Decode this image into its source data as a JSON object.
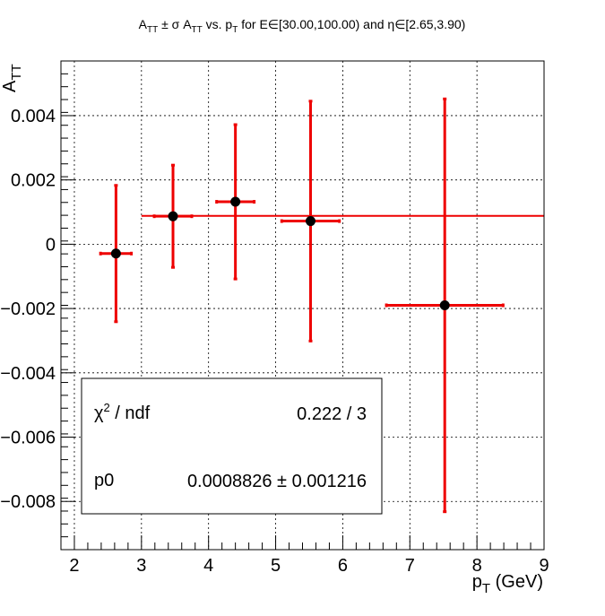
{
  "chart_data": {
    "type": "scatter",
    "title": {
      "a": "A",
      "a_sub": "TT",
      "pm_sigma": " ± σ A",
      "sigma_sub": "TT",
      "vs": " vs. p",
      "p_sub": "T",
      "rest": " for E∈[30.00,100.00) and η∈[2.65,3.90)"
    },
    "xlabel": {
      "main": "p",
      "sub": "T",
      "unit": " (GeV)"
    },
    "ylabel": {
      "main": "A",
      "sub": "TT"
    },
    "xlim": [
      1.8,
      9.0
    ],
    "ylim": [
      -0.0095,
      0.0057
    ],
    "x_ticks": [
      2,
      3,
      4,
      5,
      6,
      7,
      8,
      9
    ],
    "x_tick_labels": [
      "2",
      "3",
      "4",
      "5",
      "6",
      "7",
      "8",
      "9"
    ],
    "y_ticks": [
      0.004,
      0.002,
      0,
      -0.002,
      -0.004,
      -0.006,
      -0.008
    ],
    "y_tick_labels": [
      "0.004",
      "0.002",
      "0",
      "−0.002",
      "−0.004",
      "−0.006",
      "−0.008"
    ],
    "grid": true,
    "points": [
      {
        "x": 2.62,
        "y": -0.00029,
        "xerr": 0.23,
        "yerr": 0.00212
      },
      {
        "x": 3.47,
        "y": 0.00087,
        "xerr": 0.28,
        "yerr": 0.00159
      },
      {
        "x": 4.4,
        "y": 0.00132,
        "xerr": 0.28,
        "yerr": 0.0024
      },
      {
        "x": 5.52,
        "y": 0.00072,
        "xerr": 0.43,
        "yerr": 0.00373
      },
      {
        "x": 7.52,
        "y": -0.0019,
        "xerr": 0.87,
        "yerr": 0.00642
      }
    ],
    "fit": {
      "type": "constant",
      "value": 0.0008826,
      "x_range": [
        3.0,
        9.0
      ]
    },
    "colors": {
      "error_bars": "#ee0000",
      "fit_line": "#ee0000",
      "markers": "#000000"
    }
  },
  "stats_box": {
    "chi2_label": "χ",
    "chi2_sup": "2",
    "chi2_rest": " / ndf",
    "chi2_value": "0.222 / 3",
    "p0_label": "p0",
    "p0_value": "0.0008826 ± 0.001216"
  }
}
